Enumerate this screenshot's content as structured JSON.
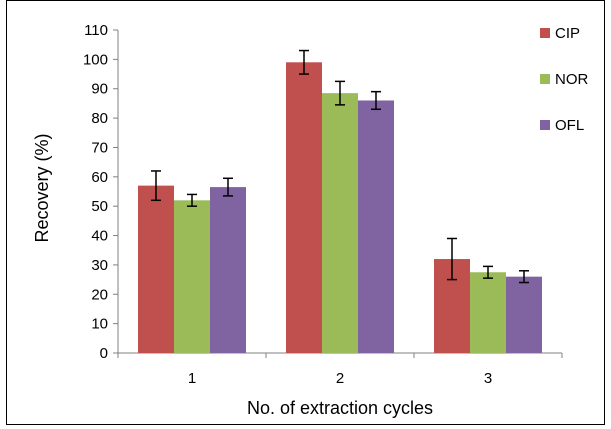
{
  "chart_data": {
    "type": "bar",
    "title": "",
    "xlabel": "No. of extraction cycles",
    "ylabel": "Recovery (%)",
    "categories": [
      "1",
      "2",
      "3"
    ],
    "ylim": [
      0,
      110
    ],
    "yticks": [
      0,
      10,
      20,
      30,
      40,
      50,
      60,
      70,
      80,
      90,
      100,
      110
    ],
    "grid": false,
    "legend_position": "top-right",
    "series": [
      {
        "name": "CIP",
        "color": "#C0504D",
        "values": [
          57,
          99,
          32
        ],
        "errors": [
          5,
          4,
          7
        ]
      },
      {
        "name": "NOR",
        "color": "#9BBB59",
        "values": [
          52,
          88.5,
          27.5
        ],
        "errors": [
          2,
          4,
          2
        ]
      },
      {
        "name": "OFL",
        "color": "#8064A2",
        "values": [
          56.5,
          86,
          26
        ],
        "errors": [
          3,
          3,
          2
        ]
      }
    ]
  }
}
